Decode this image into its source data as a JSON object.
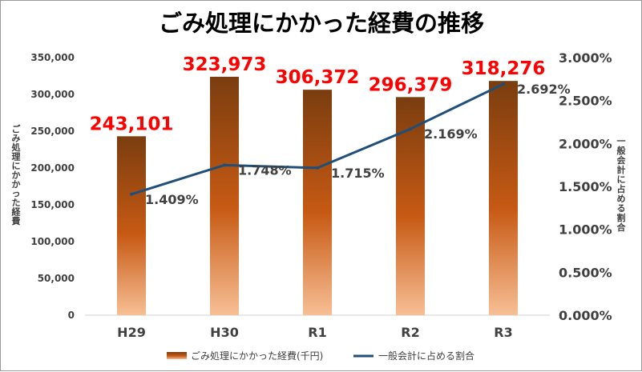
{
  "chart_data": {
    "type": "bar+line",
    "title": "ごみ処理にかかった経費の推移",
    "categories": [
      "H29",
      "H30",
      "R1",
      "R2",
      "R3"
    ],
    "y_left": {
      "label": "ごみ処理にかかった経費",
      "lim": [
        0,
        350000
      ],
      "ticks": [
        0,
        50000,
        100000,
        150000,
        200000,
        250000,
        300000,
        350000
      ],
      "tick_labels": [
        "0",
        "50,000",
        "100,000",
        "150,000",
        "200,000",
        "250,000",
        "300,000",
        "350,000"
      ]
    },
    "y_right": {
      "label": "一般会計に占める割合",
      "lim": [
        0,
        3.0
      ],
      "ticks": [
        0,
        0.5,
        1.0,
        1.5,
        2.0,
        2.5,
        3.0
      ],
      "tick_labels": [
        "0.000%",
        "0.500%",
        "1.000%",
        "1.500%",
        "2.000%",
        "2.500%",
        "3.000%"
      ]
    },
    "series": [
      {
        "name": "ごみ処理にかかった経費(千円)",
        "type": "bar",
        "axis": "left",
        "values": [
          243101,
          323973,
          306372,
          296379,
          318276
        ],
        "labels": [
          "243,101",
          "323,973",
          "306,372",
          "296,379",
          "318,276"
        ]
      },
      {
        "name": "一般会計に占める割合",
        "type": "line",
        "axis": "right",
        "values": [
          1.409,
          1.748,
          1.715,
          2.169,
          2.692
        ],
        "labels": [
          "1.409%",
          "1.748%",
          "1.715%",
          "2.169%",
          "2.692%"
        ]
      }
    ],
    "legend_position": "bottom",
    "grid": false,
    "colors": {
      "bar_top": "#7a3d0f",
      "bar_mid": "#c75a14",
      "bar_bottom": "#f7bf95",
      "line": "#1f4e79",
      "bar_label": "#ff0000",
      "line_label": "#404040"
    }
  }
}
